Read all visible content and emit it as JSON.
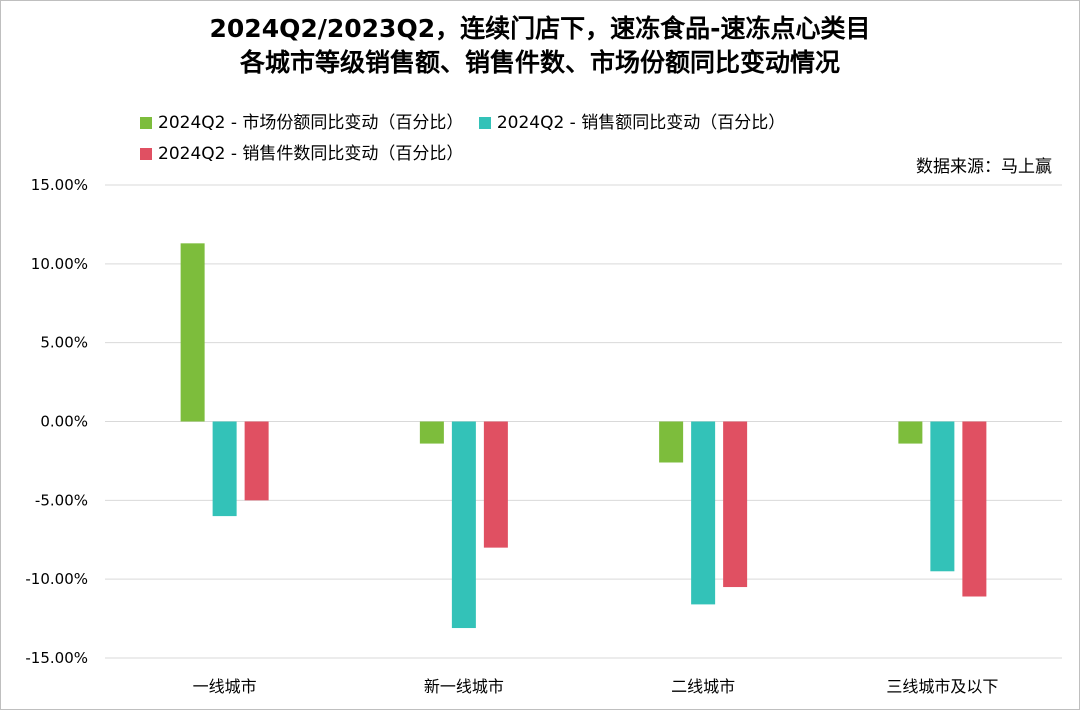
{
  "title_line1": "2024Q2/2023Q2，连续门店下，速冻食品-速冻点心类目",
  "title_line2": "各城市等级销售额、销售件数、市场份额同比变动情况",
  "source": "数据来源：马上赢",
  "colors": {
    "market_share": "#7dbd3c",
    "sales": "#33c2b8",
    "units": "#e05062",
    "grid": "#d9d9d9"
  },
  "chart_data": {
    "type": "bar",
    "title": "2024Q2/2023Q2，连续门店下，速冻食品-速冻点心类目 各城市等级销售额、销售件数、市场份额同比变动情况",
    "categories": [
      "一线城市",
      "新一线城市",
      "二线城市",
      "三线城市及以下"
    ],
    "series": [
      {
        "name": "2024Q2 - 市场份额同比变动（百分比）",
        "values": [
          11.3,
          -1.4,
          -2.6,
          -1.4
        ]
      },
      {
        "name": "2024Q2 - 销售额同比变动（百分比）",
        "values": [
          -6.0,
          -13.1,
          -11.6,
          -9.5
        ]
      },
      {
        "name": "2024Q2 - 销售件数同比变动（百分比）",
        "values": [
          -5.0,
          -8.0,
          -10.5,
          -11.1
        ]
      }
    ],
    "ylim": [
      -15,
      15
    ],
    "yticks": [
      "15.00%",
      "10.00%",
      "5.00%",
      "0.00%",
      "-5.00%",
      "-10.00%",
      "-15.00%"
    ],
    "ytick_values": [
      15,
      10,
      5,
      0,
      -5,
      -10,
      -15
    ],
    "xlabel": "",
    "ylabel": "",
    "grid": true,
    "legend_position": "top"
  }
}
